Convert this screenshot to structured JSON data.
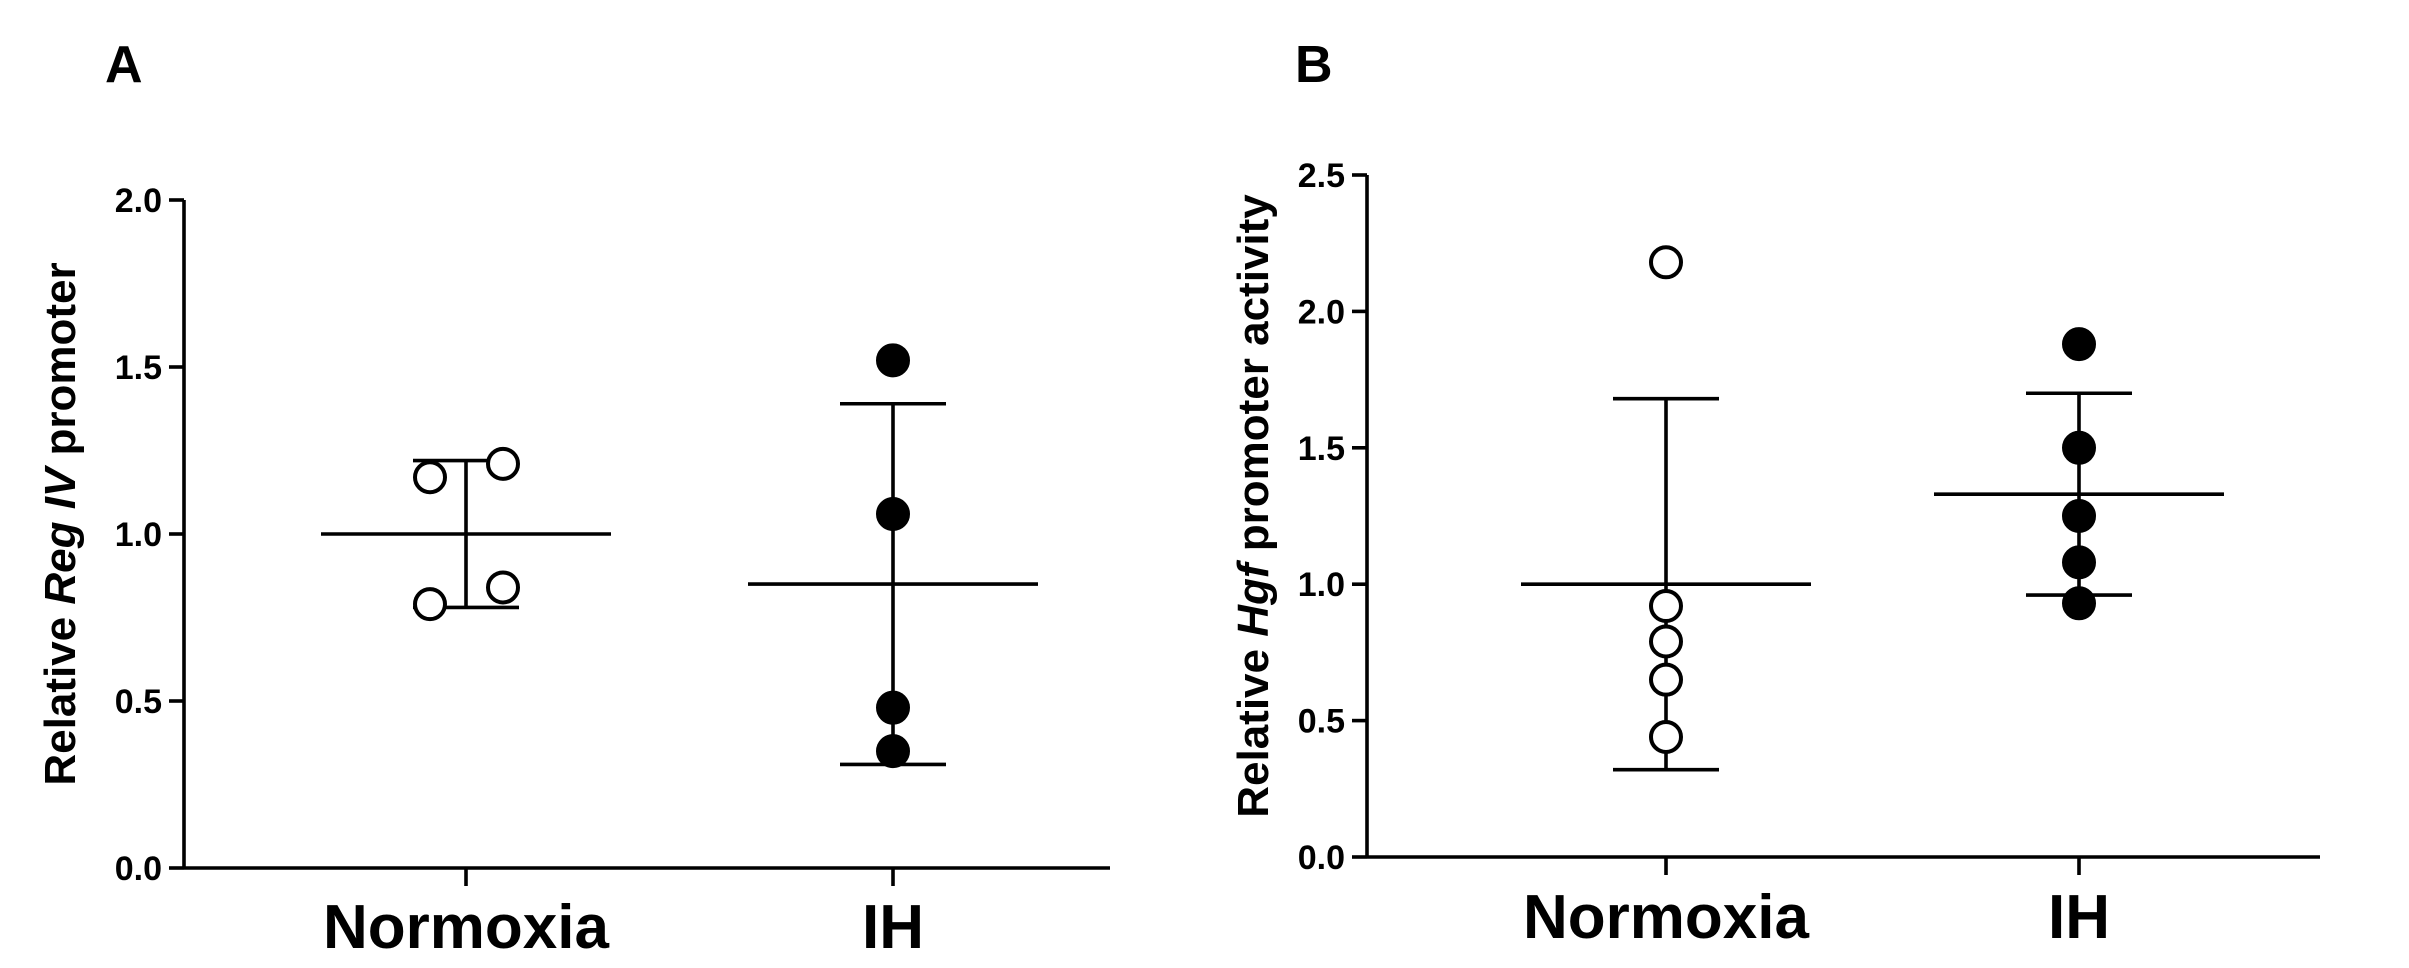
{
  "chart_data": [
    {
      "type": "scatter",
      "panel": "A",
      "ylabel": {
        "prefix": "Relative ",
        "italic": "Reg IV",
        "suffix": " promoter"
      },
      "ylim": [
        0,
        2.0
      ],
      "yticks": [
        "0.0",
        "0.5",
        "1.0",
        "1.5",
        "2.0"
      ],
      "categories": [
        "Normoxia",
        "IH"
      ],
      "series": [
        {
          "name": "Normoxia",
          "marker": "open",
          "values": [
            1.17,
            1.21,
            0.84,
            0.79
          ],
          "mean": 1.0,
          "sd_upper": 1.22,
          "sd_lower": 0.78
        },
        {
          "name": "IH",
          "marker": "filled",
          "values": [
            1.52,
            1.06,
            0.48,
            0.35
          ],
          "mean": 0.85,
          "sd_upper": 1.39,
          "sd_lower": 0.31
        }
      ]
    },
    {
      "type": "scatter",
      "panel": "B",
      "ylabel": {
        "prefix": "Relative ",
        "italic": "Hgf",
        "suffix": " promoter activity"
      },
      "ylim": [
        0,
        2.5
      ],
      "yticks": [
        "0.0",
        "0.5",
        "1.0",
        "1.5",
        "2.0",
        "2.5"
      ],
      "categories": [
        "Normoxia",
        "IH"
      ],
      "series": [
        {
          "name": "Normoxia",
          "marker": "open",
          "values": [
            2.18,
            0.92,
            0.79,
            0.65,
            0.44
          ],
          "mean": 1.0,
          "sd_upper": 1.68,
          "sd_lower": 0.32
        },
        {
          "name": "IH",
          "marker": "filled",
          "values": [
            1.88,
            1.5,
            1.25,
            1.08,
            0.93
          ],
          "mean": 1.33,
          "sd_upper": 1.7,
          "sd_lower": 0.96
        }
      ]
    }
  ]
}
